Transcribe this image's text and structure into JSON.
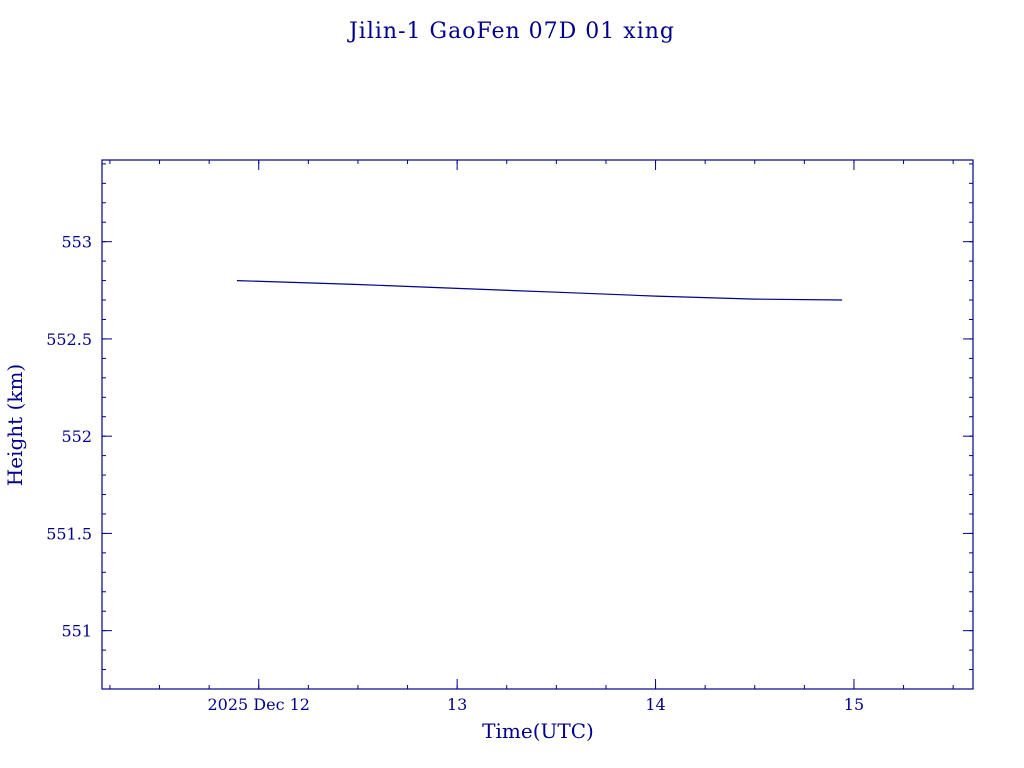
{
  "chart_data": {
    "type": "line",
    "title": "Jilin-1 GaoFen 07D 01 xing",
    "xlabel": "Time(UTC)",
    "ylabel": "Height (km)",
    "x_tick_labels": [
      "2025 Dec 12",
      "13",
      "14",
      "15"
    ],
    "x_tick_values": [
      12,
      13,
      14,
      15
    ],
    "xlim": [
      11.21,
      15.6
    ],
    "y_tick_labels": [
      "551",
      "551.5",
      "552",
      "552.5",
      "553"
    ],
    "y_tick_values": [
      551,
      551.5,
      552,
      552.5,
      553
    ],
    "ylim": [
      550.7,
      553.42
    ],
    "grid": false,
    "legend": "none",
    "series": [
      {
        "x": [
          11.89,
          12.5,
          13.0,
          13.5,
          14.0,
          14.5,
          14.94
        ],
        "y": [
          552.8,
          552.78,
          552.76,
          552.74,
          552.72,
          552.705,
          552.7
        ]
      }
    ]
  }
}
